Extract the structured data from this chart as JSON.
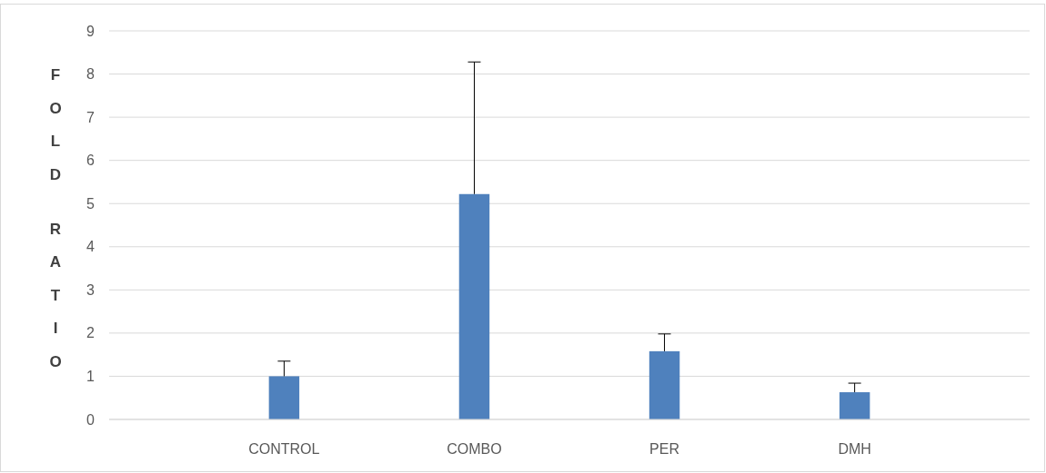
{
  "chart_data": {
    "type": "bar",
    "ylabel": "FOLD RATIO",
    "categories": [
      "CONTROL",
      "COMBO",
      "PER",
      "DMH"
    ],
    "values": [
      1.0,
      5.22,
      1.58,
      0.63
    ],
    "color": "#4f81bd",
    "errors": [
      [
        1.0,
        1.35
      ],
      [
        5.22,
        8.28
      ],
      [
        1.58,
        1.98
      ],
      [
        0.63,
        0.84
      ]
    ],
    "ylim": [
      0,
      9
    ],
    "yticks": [
      0,
      1,
      2,
      3,
      4,
      5,
      6,
      7,
      8,
      9
    ],
    "grid": "y"
  }
}
